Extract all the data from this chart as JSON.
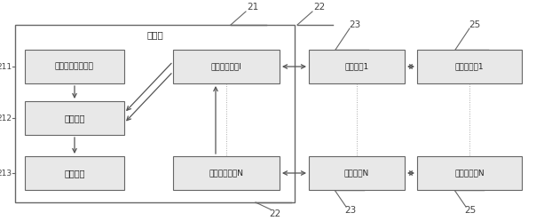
{
  "title": "主空调",
  "label_21": "21",
  "label_22_top": "22",
  "label_22_bot": "22",
  "label_23_top": "23",
  "label_23_bot": "23",
  "label_25_top": "25",
  "label_25_bot": "25",
  "label_211": "211",
  "label_212": "212",
  "label_213": "213",
  "box_env": "环境数据获取模块",
  "box_func": "功能模块",
  "box_disp": "显示模块",
  "box_ctrl1": "增容控制模块I",
  "box_ctrlN": "增容控制模块N",
  "box_ac1": "增容空调1",
  "box_acN": "增容空调N",
  "box_out1": "增容室外机1",
  "box_outN": "增容室外机N",
  "bg_color": "#ffffff",
  "box_fill": "#e8e8e8",
  "box_edge": "#666666",
  "outer_box_edge": "#666666",
  "arrow_color": "#555555",
  "text_color": "#222222",
  "font_size": 7.0,
  "label_font_size": 7.5
}
